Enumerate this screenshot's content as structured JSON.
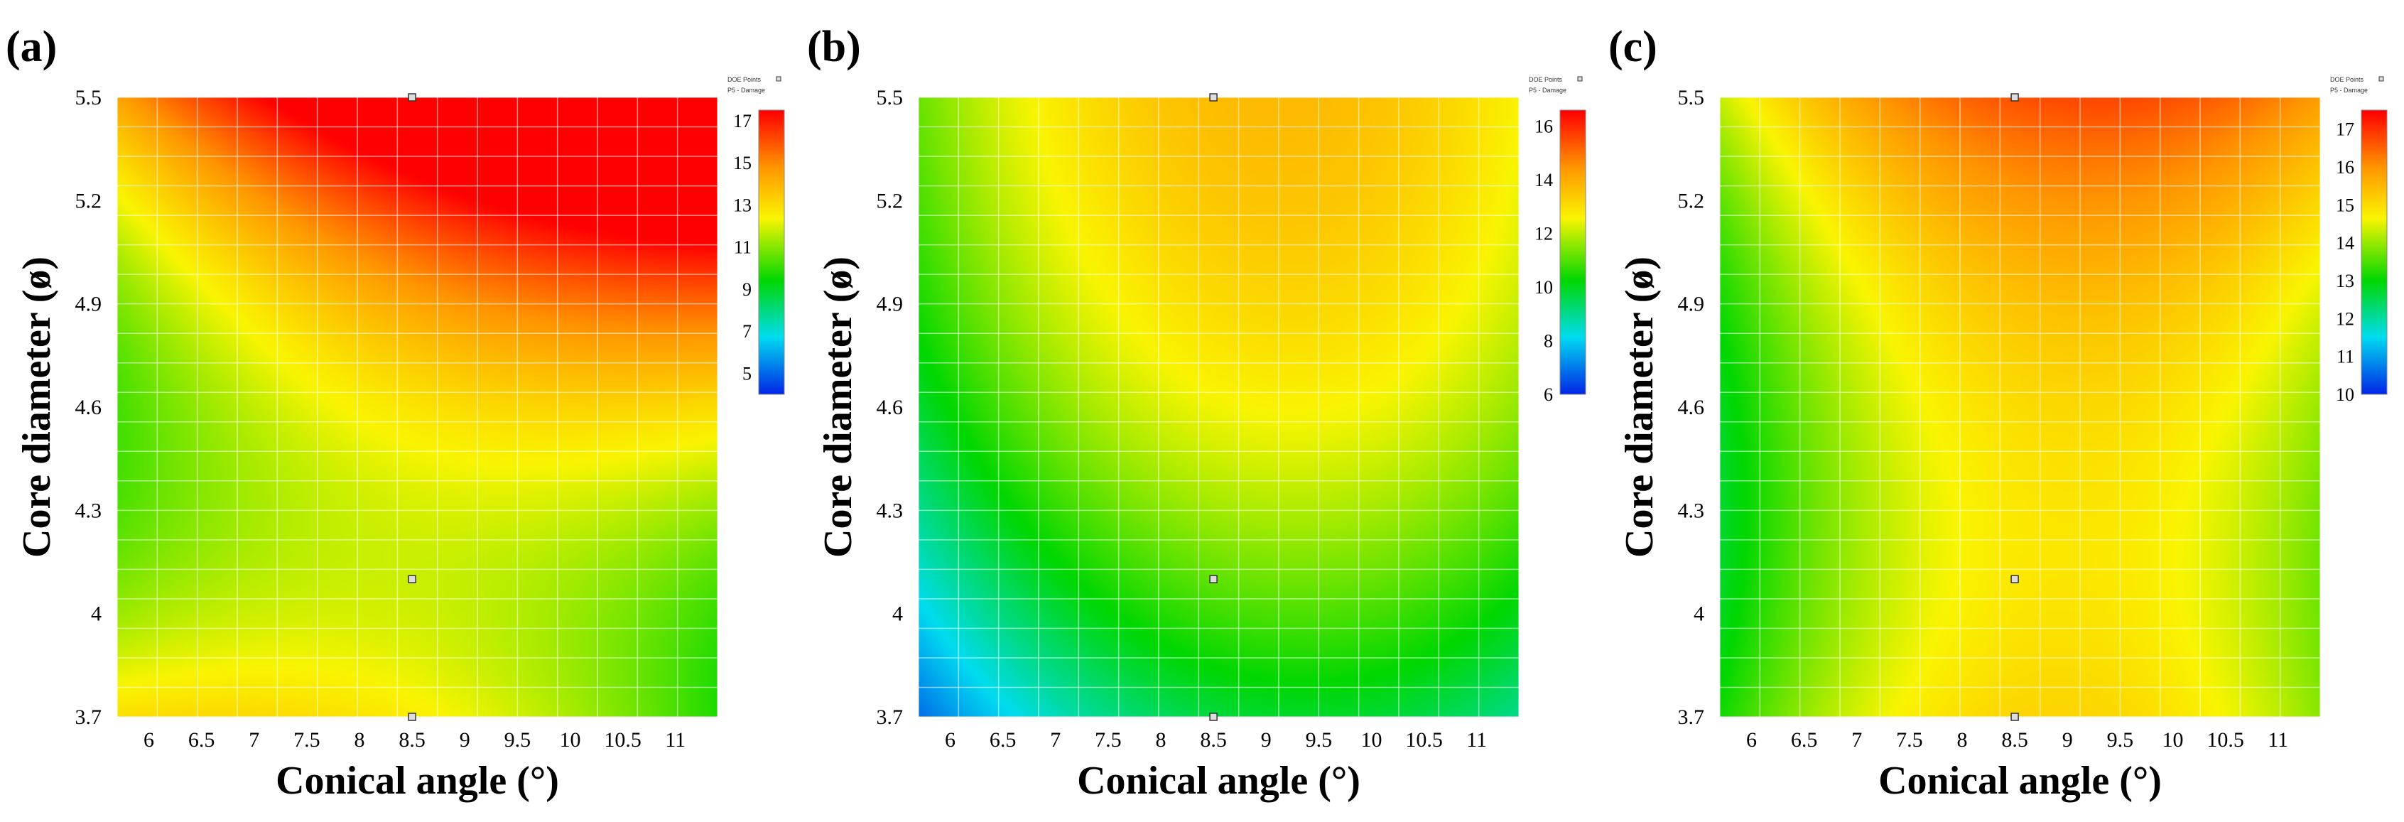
{
  "chart_data": [
    {
      "type": "heatmap",
      "panel_label": "(a)",
      "xlabel": "Conical angle (°)",
      "ylabel": "Core diameter (ø)",
      "x_ticks": [
        "6",
        "6.5",
        "7",
        "7.5",
        "8",
        "8.5",
        "9",
        "9.5",
        "10",
        "10.5",
        "11"
      ],
      "y_ticks": [
        "5.5",
        "5.2",
        "4.9",
        "4.6",
        "4.3",
        "4",
        "3.7"
      ],
      "xlim": [
        5.7,
        11.4
      ],
      "ylim": [
        3.7,
        5.5
      ],
      "colorbar_ticks": [
        "17",
        "15",
        "13",
        "11",
        "9",
        "7",
        "5"
      ],
      "colorbar_range": [
        4,
        17.5
      ],
      "legend_line1": "DOE Points",
      "legend_line2": "P5 - Damage",
      "doe_points": [
        [
          8.5,
          5.5
        ],
        [
          8.5,
          4.1
        ],
        [
          8.5,
          3.7
        ]
      ],
      "surface": {
        "z0": 12.8,
        "zx": 2.8,
        "zx2": -1.2,
        "zy": 7.5,
        "zy2": 3.5,
        "zxy": 3.0
      }
    },
    {
      "type": "heatmap",
      "panel_label": "(b)",
      "xlabel": "Conical angle (°)",
      "ylabel": "Core diameter (ø)",
      "x_ticks": [
        "6",
        "6.5",
        "7",
        "7.5",
        "8",
        "8.5",
        "9",
        "9.5",
        "10",
        "10.5",
        "11"
      ],
      "y_ticks": [
        "5.5",
        "5.2",
        "4.9",
        "4.6",
        "4.3",
        "4",
        "3.7"
      ],
      "xlim": [
        5.7,
        11.4
      ],
      "ylim": [
        3.7,
        5.5
      ],
      "colorbar_ticks": [
        "16",
        "14",
        "12",
        "10",
        "8",
        "6"
      ],
      "colorbar_range": [
        6,
        16.6
      ],
      "legend_line1": "DOE Points",
      "legend_line2": "P5 - Damage",
      "doe_points": [
        [
          8.5,
          5.5
        ],
        [
          8.5,
          4.1
        ],
        [
          8.5,
          3.7
        ]
      ],
      "surface": {
        "z0": 12.5,
        "zx": 1.8,
        "zx2": -1.8,
        "zy": 4.0,
        "zy2": -0.8,
        "zxy": -0.2
      }
    },
    {
      "type": "heatmap",
      "panel_label": "(c)",
      "xlabel": "Conical angle (°)",
      "ylabel": "Core diameter (ø)",
      "x_ticks": [
        "6",
        "6.5",
        "7",
        "7.5",
        "8",
        "8.5",
        "9",
        "9.5",
        "10",
        "10.5",
        "11"
      ],
      "y_ticks": [
        "5.5",
        "5.2",
        "4.9",
        "4.6",
        "4.3",
        "4",
        "3.7"
      ],
      "xlim": [
        5.7,
        11.4
      ],
      "ylim": [
        3.7,
        5.5
      ],
      "colorbar_ticks": [
        "17",
        "16",
        "15",
        "14",
        "13",
        "12",
        "11",
        "10"
      ],
      "colorbar_range": [
        10,
        17.5
      ],
      "legend_line1": "DOE Points",
      "legend_line2": "P5 - Damage",
      "doe_points": [
        [
          8.5,
          5.5
        ],
        [
          8.5,
          4.1
        ],
        [
          8.5,
          3.7
        ]
      ],
      "surface": {
        "z0": 15.0,
        "zx": 1.2,
        "zx2": -1.6,
        "zy": 1.6,
        "zy2": 0.9,
        "zxy": 0.2
      }
    }
  ]
}
